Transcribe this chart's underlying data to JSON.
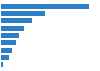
{
  "values": [
    7200000,
    3600000,
    2500000,
    1900000,
    1500000,
    1200000,
    900000,
    650000,
    180000
  ],
  "bar_color": "#2e7ec4",
  "background_color": "#ffffff",
  "grid_color": "#d0d0d0",
  "xlim": [
    0,
    8000000
  ],
  "n_bars": 9,
  "bar_height": 0.65,
  "figwidth": 1.0,
  "figheight": 0.71,
  "dpi": 100
}
